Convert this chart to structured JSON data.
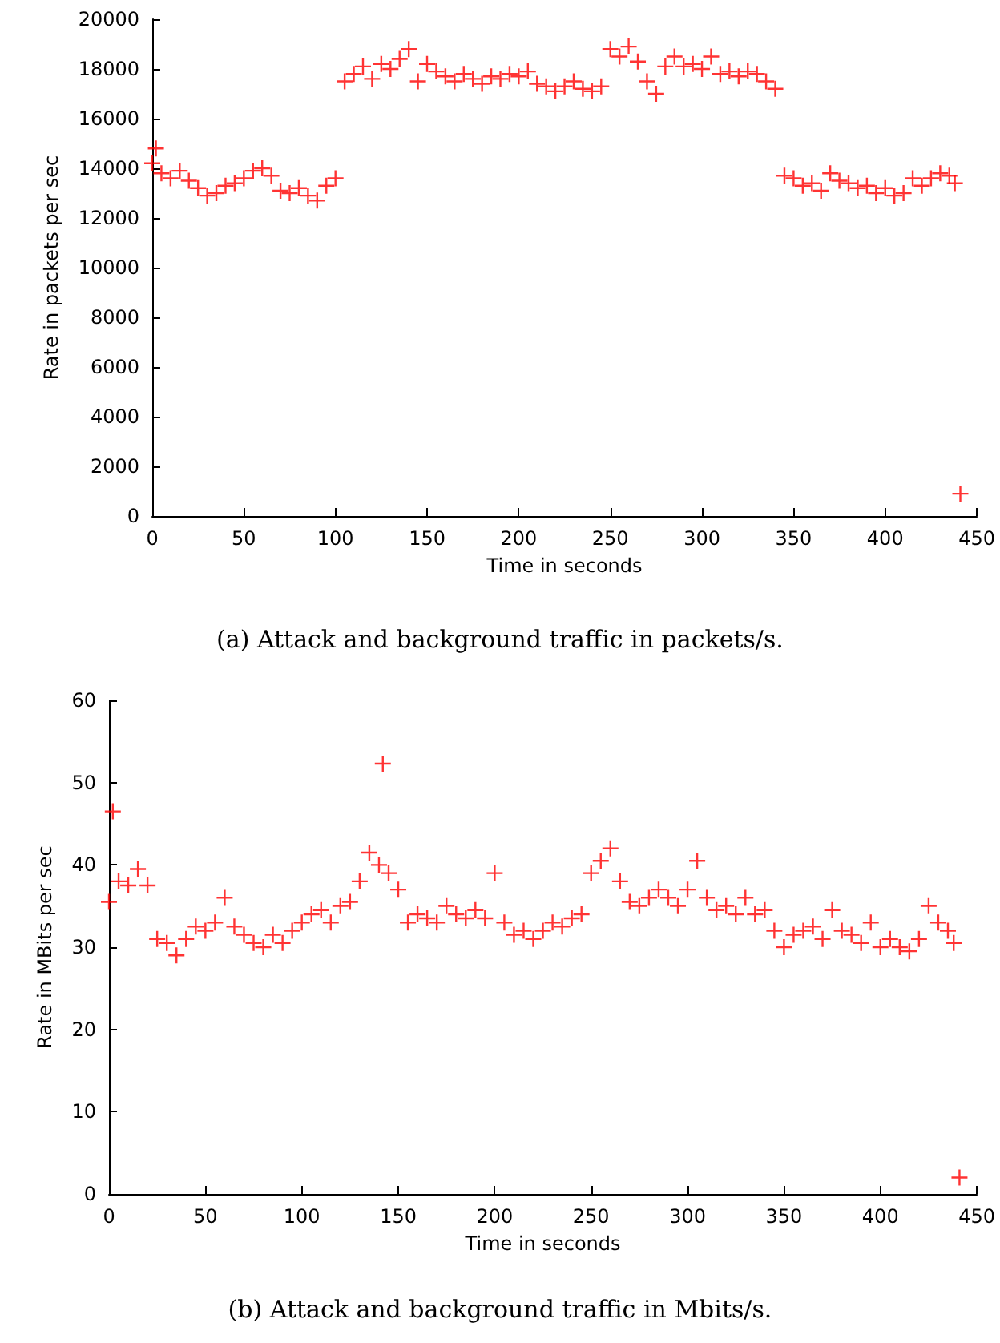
{
  "chart_data": [
    {
      "type": "scatter",
      "xlabel": "Time in seconds",
      "ylabel": "Rate in packets per sec",
      "annotations": [
        "(a) Attack and background traffic in packets/s."
      ],
      "x": [
        0,
        2,
        5,
        10,
        15,
        20,
        25,
        30,
        35,
        40,
        45,
        50,
        55,
        60,
        65,
        70,
        75,
        80,
        85,
        90,
        95,
        100,
        105,
        110,
        115,
        120,
        125,
        130,
        135,
        140,
        145,
        150,
        155,
        160,
        165,
        170,
        175,
        180,
        185,
        190,
        195,
        200,
        205,
        210,
        215,
        220,
        225,
        230,
        235,
        240,
        245,
        250,
        255,
        260,
        265,
        270,
        275,
        280,
        285,
        290,
        295,
        300,
        305,
        310,
        315,
        320,
        325,
        330,
        335,
        340,
        345,
        350,
        355,
        360,
        365,
        370,
        375,
        380,
        385,
        390,
        395,
        400,
        405,
        410,
        415,
        420,
        425,
        430,
        435,
        438,
        441
      ],
      "series": [
        {
          "color": "#ff0000",
          "values": [
            14200,
            14800,
            13800,
            13600,
            13900,
            13500,
            13200,
            12900,
            13000,
            13300,
            13400,
            13600,
            13900,
            14000,
            13700,
            13100,
            13000,
            13200,
            12900,
            12700,
            13300,
            13600,
            17500,
            17800,
            18100,
            17600,
            18200,
            18000,
            18400,
            18800,
            17500,
            18200,
            17900,
            17700,
            17500,
            17800,
            17600,
            17400,
            17700,
            17600,
            17800,
            17700,
            17900,
            17400,
            17300,
            17100,
            17300,
            17500,
            17200,
            17100,
            17300,
            18800,
            18500,
            18900,
            18300,
            17500,
            17000,
            18100,
            18500,
            18100,
            18200,
            18000,
            18500,
            17800,
            17900,
            17700,
            17900,
            17800,
            17500,
            17200,
            13700,
            13600,
            13300,
            13400,
            13100,
            13800,
            13500,
            13400,
            13200,
            13300,
            13000,
            13200,
            12900,
            13000,
            13600,
            13300,
            13600,
            13800,
            13700,
            13400,
            900
          ]
        }
      ],
      "xlim": [
        0,
        450
      ],
      "xticks": [
        0,
        50,
        100,
        150,
        200,
        250,
        300,
        350,
        400,
        450
      ],
      "ylim": [
        0,
        20000
      ],
      "yticks": [
        0,
        2000,
        4000,
        6000,
        8000,
        10000,
        12000,
        14000,
        16000,
        18000,
        20000
      ],
      "marker": "cross"
    },
    {
      "type": "scatter",
      "xlabel": "Time in seconds",
      "ylabel": "Rate in MBits per sec",
      "annotations": [
        "(b) Attack and background traffic in Mbits/s."
      ],
      "x": [
        0,
        2,
        5,
        10,
        15,
        20,
        25,
        30,
        35,
        40,
        45,
        50,
        55,
        60,
        65,
        70,
        75,
        80,
        85,
        90,
        95,
        100,
        105,
        110,
        115,
        120,
        125,
        130,
        135,
        140,
        142,
        145,
        150,
        155,
        160,
        165,
        170,
        175,
        180,
        185,
        190,
        195,
        200,
        205,
        210,
        215,
        220,
        225,
        230,
        235,
        240,
        245,
        250,
        255,
        260,
        265,
        270,
        275,
        280,
        285,
        290,
        295,
        300,
        305,
        310,
        315,
        320,
        325,
        330,
        335,
        340,
        345,
        350,
        355,
        360,
        365,
        370,
        375,
        380,
        385,
        390,
        395,
        400,
        405,
        410,
        415,
        420,
        425,
        430,
        435,
        438,
        441
      ],
      "series": [
        {
          "color": "#ff0000",
          "values": [
            35.5,
            46.5,
            38,
            37.5,
            39.5,
            37.5,
            31,
            30.5,
            29,
            31,
            32.5,
            32,
            33,
            36,
            32.5,
            31.5,
            30.5,
            30,
            31.5,
            30.5,
            32,
            33,
            34,
            34.5,
            33,
            35,
            35.5,
            38,
            41.5,
            40,
            52.3,
            39,
            37,
            33,
            34,
            33.5,
            33,
            35,
            34,
            33.5,
            34.5,
            33.5,
            39,
            33,
            31.5,
            32,
            31,
            32,
            33,
            32.5,
            33.5,
            34,
            39,
            40.5,
            42,
            38,
            35.5,
            35,
            36,
            37,
            36,
            35,
            37,
            40.5,
            36,
            34.5,
            35,
            34,
            36,
            34,
            34.5,
            32,
            30,
            31.5,
            32,
            32.5,
            31,
            34.5,
            32,
            31.5,
            30.5,
            33,
            30,
            31,
            30,
            29.5,
            31,
            35,
            33,
            32,
            30.5,
            2
          ]
        }
      ],
      "xlim": [
        0,
        450
      ],
      "xticks": [
        0,
        50,
        100,
        150,
        200,
        250,
        300,
        350,
        400,
        450
      ],
      "ylim": [
        0,
        60
      ],
      "yticks": [
        0,
        10,
        20,
        30,
        40,
        50,
        60
      ],
      "marker": "cross"
    }
  ]
}
